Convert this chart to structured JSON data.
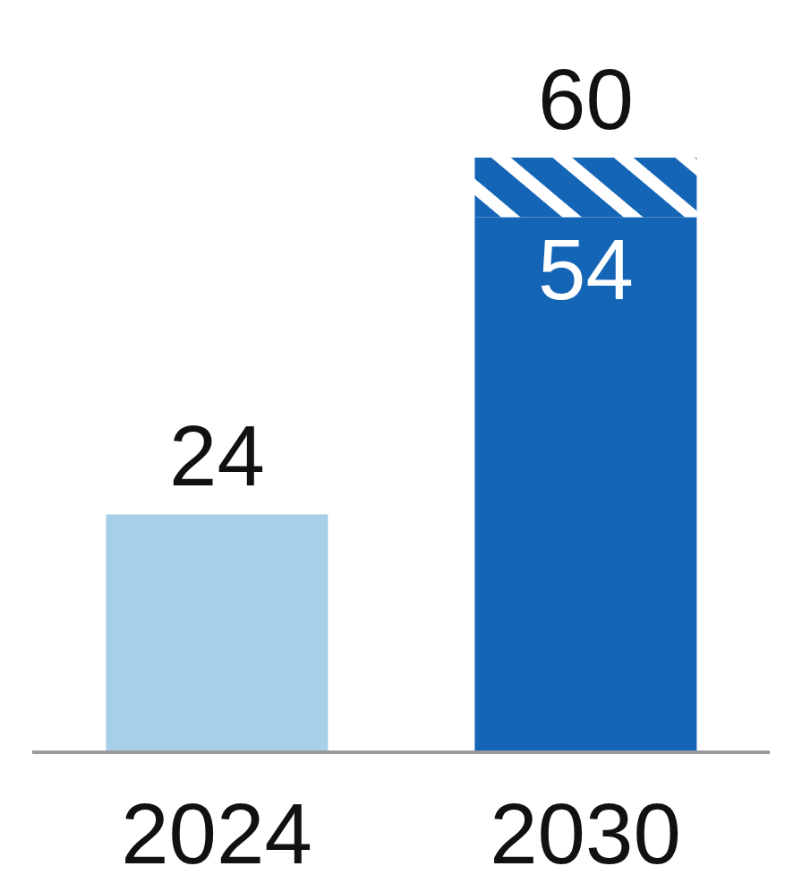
{
  "chart_data": {
    "type": "bar",
    "stacked": true,
    "categories": [
      "2024",
      "2030"
    ],
    "series": [
      {
        "colors": [
          "#a8cfe8",
          "#1565b7"
        ],
        "values": [
          24,
          54
        ],
        "value_labels": [
          null,
          "54"
        ]
      },
      {
        "color": "#1565b7",
        "values": [
          null,
          6
        ]
      }
    ],
    "totals": [
      "24",
      "60"
    ],
    "grid": false,
    "legend": false
  }
}
